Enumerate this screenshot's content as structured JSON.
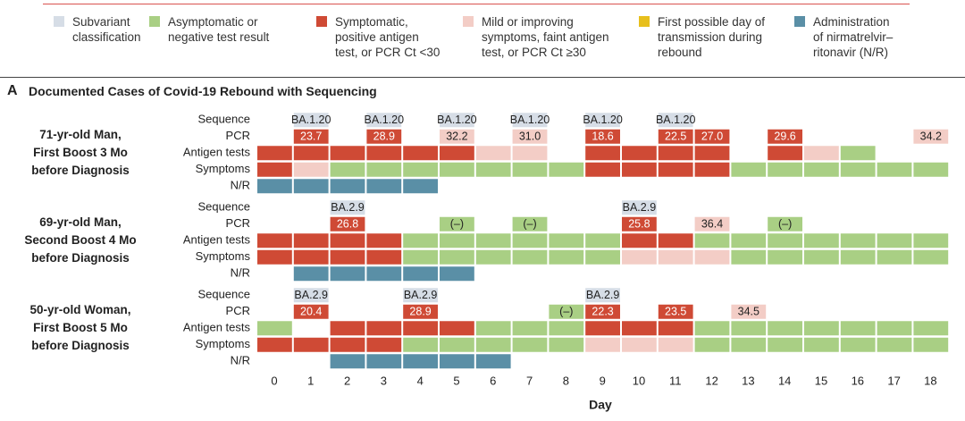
{
  "legend": [
    {
      "key": "seq",
      "color": "#d6dde6",
      "label": "Subvariant\nclassification"
    },
    {
      "key": "neg",
      "color": "#a9cf84",
      "label": "Asymptomatic or\nnegative test result"
    },
    {
      "key": "pos",
      "color": "#cf4a35",
      "label": "Symptomatic,\npositive antigen\ntest, or PCR Ct <30"
    },
    {
      "key": "mild",
      "color": "#f3cdc6",
      "label": "Mild or improving\nsymptoms, faint antigen\ntest, or PCR Ct ≥30"
    },
    {
      "key": "first",
      "color": "#e7bf1c",
      "label": "First possible day of\ntransmission during\nrebound"
    },
    {
      "key": "nr",
      "color": "#5a8fa6",
      "label": "Administration\nof nirmatrelvir–\nritonavir (N/R)"
    }
  ],
  "panel": {
    "letter": "A",
    "title": "Documented Cases of Covid-19 Rebound with Sequencing"
  },
  "chart_data": {
    "type": "table",
    "days": [
      0,
      1,
      2,
      3,
      4,
      5,
      6,
      7,
      8,
      9,
      10,
      11,
      12,
      13,
      14,
      15,
      16,
      17,
      18
    ],
    "xlabel": "Day",
    "row_labels": [
      "Sequence",
      "PCR",
      "Antigen tests",
      "Symptoms",
      "N/R"
    ],
    "patients": [
      {
        "label": "71-yr-old Man,\nFirst Boost 3 Mo\nbefore Diagnosis",
        "sequence": [
          null,
          "BA.1.20",
          null,
          "BA.1.20",
          null,
          "BA.1.20",
          null,
          "BA.1.20",
          null,
          "BA.1.20",
          null,
          "BA.1.20",
          null,
          null,
          null,
          null,
          null,
          null,
          null
        ],
        "pcr": [
          null,
          {
            "v": "23.7",
            "s": "pos"
          },
          null,
          {
            "v": "28.9",
            "s": "pos"
          },
          null,
          {
            "v": "32.2",
            "s": "mild"
          },
          null,
          {
            "v": "31.0",
            "s": "mild"
          },
          null,
          {
            "v": "18.6",
            "s": "pos"
          },
          null,
          {
            "v": "22.5",
            "s": "pos"
          },
          {
            "v": "27.0",
            "s": "pos"
          },
          null,
          {
            "v": "29.6",
            "s": "pos"
          },
          null,
          null,
          null,
          {
            "v": "34.2",
            "s": "mild"
          }
        ],
        "antigen": [
          "pos",
          "pos",
          "pos",
          "pos",
          "pos",
          "pos",
          "mild",
          "mild",
          null,
          "pos",
          "pos",
          "pos",
          "pos",
          null,
          "pos",
          "mild",
          "neg",
          null,
          null
        ],
        "symptoms": [
          "pos",
          "mild",
          "neg",
          "neg",
          "neg",
          "neg",
          "neg",
          "neg",
          "neg",
          "pos",
          "pos",
          "pos",
          "pos",
          "neg",
          "neg",
          "neg",
          "neg",
          "neg",
          "neg"
        ],
        "nr": [
          "nr",
          "nr",
          "nr",
          "nr",
          "nr",
          null,
          null,
          null,
          null,
          null,
          null,
          null,
          null,
          null,
          null,
          null,
          null,
          null,
          null
        ]
      },
      {
        "label": "69-yr-old Man,\nSecond Boost 4 Mo\nbefore Diagnosis",
        "sequence": [
          null,
          null,
          "BA.2.9",
          null,
          null,
          null,
          null,
          null,
          null,
          null,
          "BA.2.9",
          null,
          null,
          null,
          null,
          null,
          null,
          null,
          null
        ],
        "pcr": [
          null,
          null,
          {
            "v": "26.8",
            "s": "pos"
          },
          null,
          null,
          {
            "v": "(–)",
            "s": "neg"
          },
          null,
          {
            "v": "(–)",
            "s": "neg"
          },
          null,
          null,
          {
            "v": "25.8",
            "s": "pos"
          },
          null,
          {
            "v": "36.4",
            "s": "mild"
          },
          null,
          {
            "v": "(–)",
            "s": "neg"
          },
          null,
          null,
          null,
          null
        ],
        "antigen": [
          "pos",
          "pos",
          "pos",
          "pos",
          "neg",
          "neg",
          "neg",
          "neg",
          "neg",
          "neg",
          "pos",
          "pos",
          "neg",
          "neg",
          "neg",
          "neg",
          "neg",
          "neg",
          "neg"
        ],
        "symptoms": [
          "pos",
          "pos",
          "pos",
          "pos",
          "neg",
          "neg",
          "neg",
          "neg",
          "neg",
          "neg",
          "mild",
          "mild",
          "mild",
          "neg",
          "neg",
          "neg",
          "neg",
          "neg",
          "neg"
        ],
        "nr": [
          null,
          "nr",
          "nr",
          "nr",
          "nr",
          "nr",
          null,
          null,
          null,
          null,
          null,
          null,
          null,
          null,
          null,
          null,
          null,
          null,
          null
        ]
      },
      {
        "label": "50-yr-old Woman,\nFirst Boost 5 Mo\nbefore Diagnosis",
        "sequence": [
          null,
          "BA.2.9",
          null,
          null,
          "BA.2.9",
          null,
          null,
          null,
          null,
          "BA.2.9",
          null,
          null,
          null,
          null,
          null,
          null,
          null,
          null,
          null
        ],
        "pcr": [
          null,
          {
            "v": "20.4",
            "s": "pos"
          },
          null,
          null,
          {
            "v": "28.9",
            "s": "pos"
          },
          null,
          null,
          null,
          {
            "v": "(–)",
            "s": "neg"
          },
          {
            "v": "22.3",
            "s": "pos"
          },
          null,
          {
            "v": "23.5",
            "s": "pos"
          },
          null,
          {
            "v": "34.5",
            "s": "mild"
          },
          null,
          null,
          null,
          null,
          null
        ],
        "antigen": [
          "neg",
          null,
          "pos",
          "pos",
          "pos",
          "pos",
          "neg",
          "neg",
          "neg",
          "pos",
          "pos",
          "pos",
          "neg",
          "neg",
          "neg",
          "neg",
          "neg",
          "neg",
          "neg"
        ],
        "symptoms": [
          "pos",
          "pos",
          "pos",
          "pos",
          "neg",
          "neg",
          "neg",
          "neg",
          "neg",
          "mild",
          "mild",
          "mild",
          "neg",
          "neg",
          "neg",
          "neg",
          "neg",
          "neg",
          "neg"
        ],
        "nr": [
          null,
          null,
          "nr",
          "nr",
          "nr",
          "nr",
          "nr",
          null,
          null,
          null,
          null,
          null,
          null,
          null,
          null,
          null,
          null,
          null,
          null
        ]
      }
    ]
  }
}
